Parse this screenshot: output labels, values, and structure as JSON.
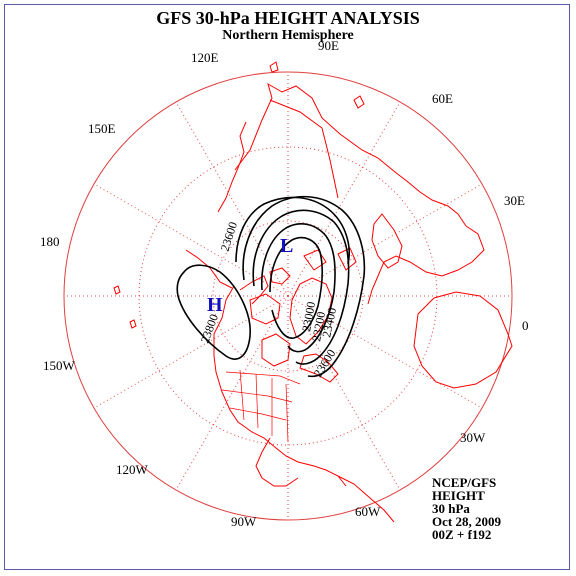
{
  "title": "GFS 30-hPa HEIGHT ANALYSIS",
  "subtitle": "Northern Hemisphere",
  "longitude_labels": [
    "90E",
    "60E",
    "120E",
    "30E",
    "150E",
    "180",
    "0",
    "150W",
    "30W",
    "120W",
    "90W",
    "60W"
  ],
  "contour_labels": [
    "23600",
    "23800",
    "23000",
    "23200",
    "23400",
    "23600"
  ],
  "pressure_centers": {
    "low": "L",
    "high": "H"
  },
  "info_block": [
    "NCEP/GFS",
    "HEIGHT",
    "30 hPa",
    "Oct 28, 2009",
    "00Z + f192"
  ],
  "colors": {
    "coastline": "#ff0000",
    "grid": "#e04040",
    "contour": "#000000",
    "center_label": "#1010c0",
    "frame": "#5a5aa8"
  }
}
